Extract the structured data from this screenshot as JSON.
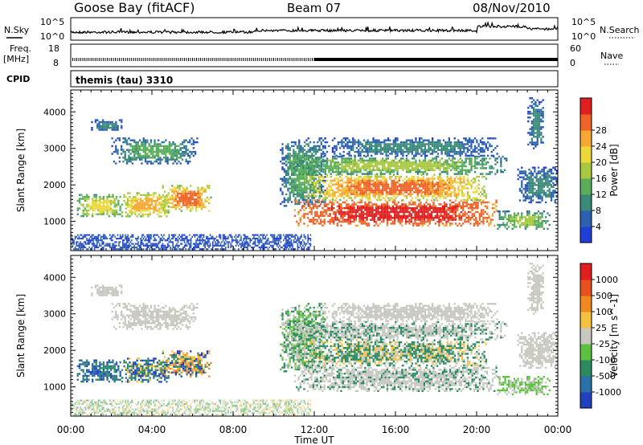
{
  "header": {
    "station": "Goose Bay (fitACF)",
    "beam": "Beam 07",
    "date": "08/Nov/2010"
  },
  "strips": {
    "nsky_label": "N.Sky",
    "nsearch_label": "N.Search",
    "nsky_ticks": [
      "10^5",
      "10^0"
    ],
    "freq_label_top": "Freq.",
    "freq_label_unit": "[MHz]",
    "freq_ticks": [
      "18",
      "8"
    ],
    "nave_label": "Nave",
    "nave_ticks": [
      "60",
      "0"
    ],
    "cpid_label": "CPID",
    "cpid_text": "themis (tau) 3310"
  },
  "chart_data": [
    {
      "type": "heatmap",
      "name": "Power",
      "ylabel": "Slant Range [km]",
      "ylim": [
        200,
        4600
      ],
      "yticks": [
        1000,
        2000,
        3000,
        4000
      ],
      "colorbar_label": "Power [dB]",
      "colorbar_ticks": [
        4,
        8,
        12,
        16,
        20,
        24,
        28
      ],
      "colors": [
        "#1f3fd6",
        "#2c60b0",
        "#3a8a7a",
        "#58ad5a",
        "#a7c840",
        "#ecd83a",
        "#f6a832",
        "#ef6426",
        "#e02020"
      ]
    },
    {
      "type": "heatmap",
      "name": "Velocity",
      "xlabel": "Time UT",
      "ylabel": "Slant Range [km]",
      "ylim": [
        200,
        4600
      ],
      "yticks": [
        1000,
        2000,
        3000,
        4000
      ],
      "xticks": [
        "00:00",
        "04:00",
        "08:00",
        "12:00",
        "16:00",
        "20:00",
        "00:00"
      ],
      "xlim_hours": [
        0,
        24
      ],
      "colorbar_label": "Velocity [m s^-1]",
      "colorbar_ticks": [
        "1000",
        "500",
        "100",
        "25",
        "-25",
        "-100",
        "-500",
        "-1000"
      ],
      "colors": [
        "#2040c0",
        "#2c70a8",
        "#2a8a60",
        "#5cc040",
        "#c8c8c0",
        "#f6c040",
        "#f08a20",
        "#e85020",
        "#e02020"
      ]
    }
  ]
}
